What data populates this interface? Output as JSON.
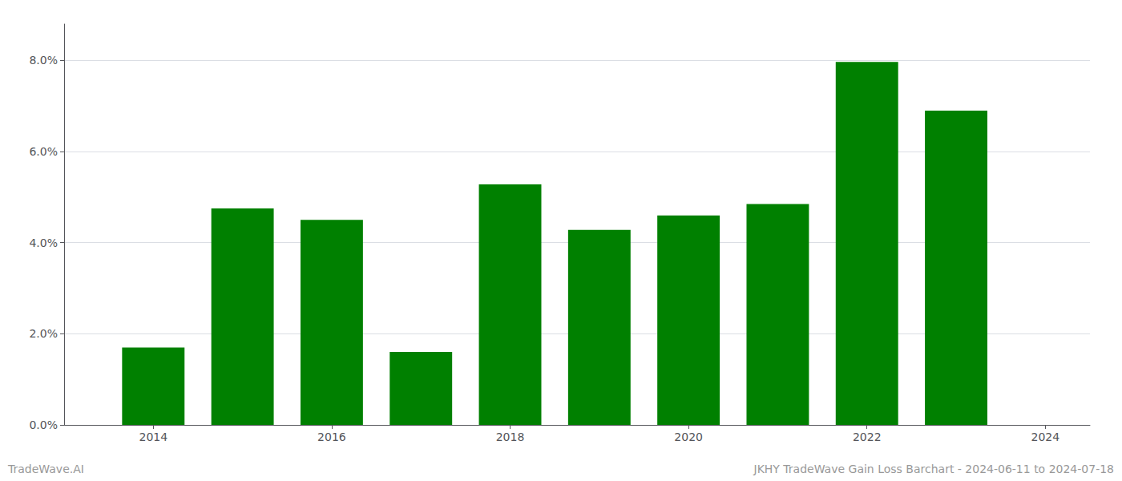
{
  "chart_data": {
    "type": "bar",
    "x": [
      2014,
      2015,
      2016,
      2017,
      2018,
      2019,
      2020,
      2021,
      2022,
      2023
    ],
    "values": [
      0.017,
      0.0475,
      0.045,
      0.016,
      0.0528,
      0.0428,
      0.046,
      0.0485,
      0.0797,
      0.069
    ],
    "color": "#008000",
    "xlim": [
      2013.0,
      2024.5
    ],
    "xticks": [
      2014,
      2016,
      2018,
      2020,
      2022,
      2024
    ],
    "ylim": [
      0,
      0.088
    ],
    "yticks": [
      {
        "value": 0.0,
        "label": "0.0%"
      },
      {
        "value": 0.02,
        "label": "2.0%"
      },
      {
        "value": 0.04,
        "label": "4.0%"
      },
      {
        "value": 0.06,
        "label": "6.0%"
      },
      {
        "value": 0.08,
        "label": "8.0%"
      }
    ],
    "grid": true,
    "annotations": [
      "TradeWave.AI",
      "JKHY TradeWave Gain Loss Barchart - 2024-06-11 to 2024-07-18"
    ]
  }
}
